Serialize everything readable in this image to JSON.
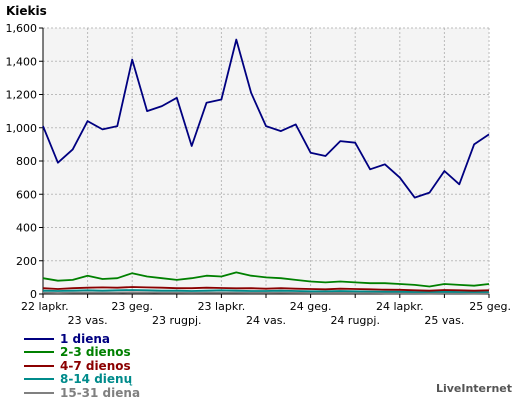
{
  "chart_data": {
    "type": "line",
    "ylabel": "Kiekis",
    "ylim": [
      0,
      1600
    ],
    "yticks": [
      0,
      200,
      400,
      600,
      800,
      1000,
      1200,
      1400,
      1600
    ],
    "ytick_labels": [
      "0",
      "200",
      "400",
      "600",
      "800",
      "1,000",
      "1,200",
      "1,400",
      "1,600"
    ],
    "grid": "vertical dashed at tick positions",
    "num_points": 31,
    "xtick_labels": [
      {
        "label": "22 lapkr.",
        "index": 0,
        "row": 1
      },
      {
        "label": "23 vas.",
        "index": 3,
        "row": 2
      },
      {
        "label": "23 geg.",
        "index": 6,
        "row": 1
      },
      {
        "label": "23 rugpj.",
        "index": 9,
        "row": 2
      },
      {
        "label": "23 lapkr.",
        "index": 12,
        "row": 1
      },
      {
        "label": "24 vas.",
        "index": 15,
        "row": 2
      },
      {
        "label": "24 geg.",
        "index": 18,
        "row": 1
      },
      {
        "label": "24 rugpj.",
        "index": 21,
        "row": 2
      },
      {
        "label": "24 lapkr.",
        "index": 24,
        "row": 1
      },
      {
        "label": "25 vas.",
        "index": 27,
        "row": 2
      },
      {
        "label": "25 geg.",
        "index": 30,
        "row": 1
      }
    ],
    "series": [
      {
        "name": "1 diena",
        "color": "#000080",
        "values": [
          1010,
          790,
          870,
          1040,
          990,
          1010,
          1410,
          1100,
          1130,
          1180,
          890,
          1150,
          1170,
          1530,
          1210,
          1010,
          980,
          1020,
          850,
          830,
          920,
          910,
          750,
          780,
          700,
          580,
          610,
          740,
          660,
          900,
          960
        ]
      },
      {
        "name": "2-3 dienos",
        "color": "#008000",
        "values": [
          95,
          80,
          85,
          110,
          90,
          95,
          125,
          105,
          95,
          85,
          95,
          110,
          105,
          130,
          110,
          100,
          95,
          85,
          75,
          70,
          75,
          70,
          65,
          65,
          60,
          55,
          45,
          60,
          55,
          50,
          60
        ]
      },
      {
        "name": "4-7 dienos",
        "color": "#8b0000",
        "values": [
          35,
          30,
          35,
          38,
          40,
          38,
          42,
          40,
          38,
          35,
          35,
          38,
          36,
          34,
          35,
          32,
          35,
          32,
          30,
          28,
          32,
          30,
          28,
          26,
          25,
          22,
          20,
          24,
          22,
          20,
          22
        ]
      },
      {
        "name": "8-14 dienų",
        "color": "#008b8b",
        "values": [
          20,
          18,
          20,
          22,
          20,
          22,
          24,
          22,
          20,
          20,
          18,
          20,
          22,
          20,
          18,
          18,
          20,
          18,
          16,
          16,
          18,
          16,
          15,
          14,
          14,
          12,
          12,
          14,
          12,
          12,
          12
        ]
      },
      {
        "name": "15-31 diena",
        "color": "#808080",
        "values": [
          8,
          6,
          8,
          8,
          8,
          8,
          10,
          9,
          8,
          8,
          7,
          8,
          8,
          8,
          7,
          7,
          8,
          7,
          6,
          6,
          7,
          6,
          6,
          5,
          5,
          5,
          4,
          5,
          5,
          4,
          5
        ]
      }
    ]
  },
  "credit": "LiveInternet"
}
